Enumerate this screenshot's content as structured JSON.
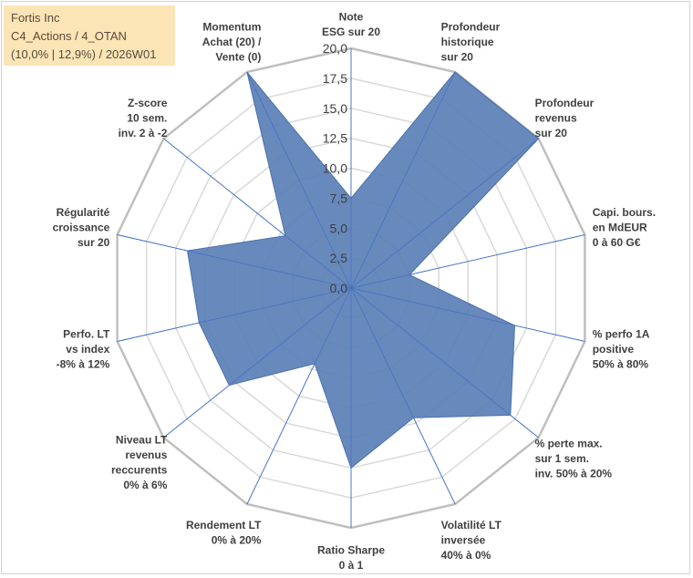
{
  "info_box": {
    "line1": "Fortis Inc",
    "line2": "C4_Actions / 4_OTAN",
    "line3": "(10,0% | 12,9%) / 2026W01"
  },
  "colors": {
    "area_fill": "#5a7fb6",
    "area_stroke": "#4b72ad",
    "grid": "#d9d9d9",
    "axis": "#4472c4",
    "outer_ring": "#bfbfbf",
    "text": "#404040"
  },
  "chart_data": {
    "type": "radar",
    "rmax": 20,
    "tick_labels": [
      "0,0",
      "2,5",
      "5,0",
      "7,5",
      "10,0",
      "12,5",
      "15,0",
      "17,5",
      "20,0"
    ],
    "tick_values": [
      0,
      2.5,
      5,
      7.5,
      10,
      12.5,
      15,
      17.5,
      20
    ],
    "grid": true,
    "categories": [
      [
        "Note",
        "ESG sur 20"
      ],
      [
        "Profondeur",
        "historique",
        "sur 20"
      ],
      [
        "Profondeur",
        "revenus",
        "sur 20"
      ],
      [
        "Capi. bours.",
        "en MdEUR",
        "0 à 60 G€"
      ],
      [
        "% perfo 1A",
        "positive",
        "50% à 80%"
      ],
      [
        "% perte max.",
        "sur 1 sem.",
        "inv. 50% à 20%"
      ],
      [
        "Volatilité LT",
        "inversée",
        "40% à 0%"
      ],
      [
        "Ratio Sharpe",
        "0 à 1"
      ],
      [
        "Rendement LT",
        "0% à 20%"
      ],
      [
        "Niveau LT",
        "revenus",
        "reccurents",
        "0% à 6%"
      ],
      [
        "Perfo. LT",
        "vs index",
        "-8% à 12%"
      ],
      [
        "Régularité",
        "croissance",
        "sur 20"
      ],
      [
        "Z-score",
        "10 sem.",
        "inv. 2 à -2"
      ],
      [
        "Momentum",
        "Achat (20) /",
        "Vente (0)"
      ]
    ],
    "series": [
      {
        "values": [
          7.5,
          20.0,
          20.0,
          5.0,
          14.0,
          17.0,
          12.0,
          15.0,
          7.0,
          13.0,
          13.0,
          14.0,
          7.0,
          20.0
        ]
      }
    ]
  }
}
